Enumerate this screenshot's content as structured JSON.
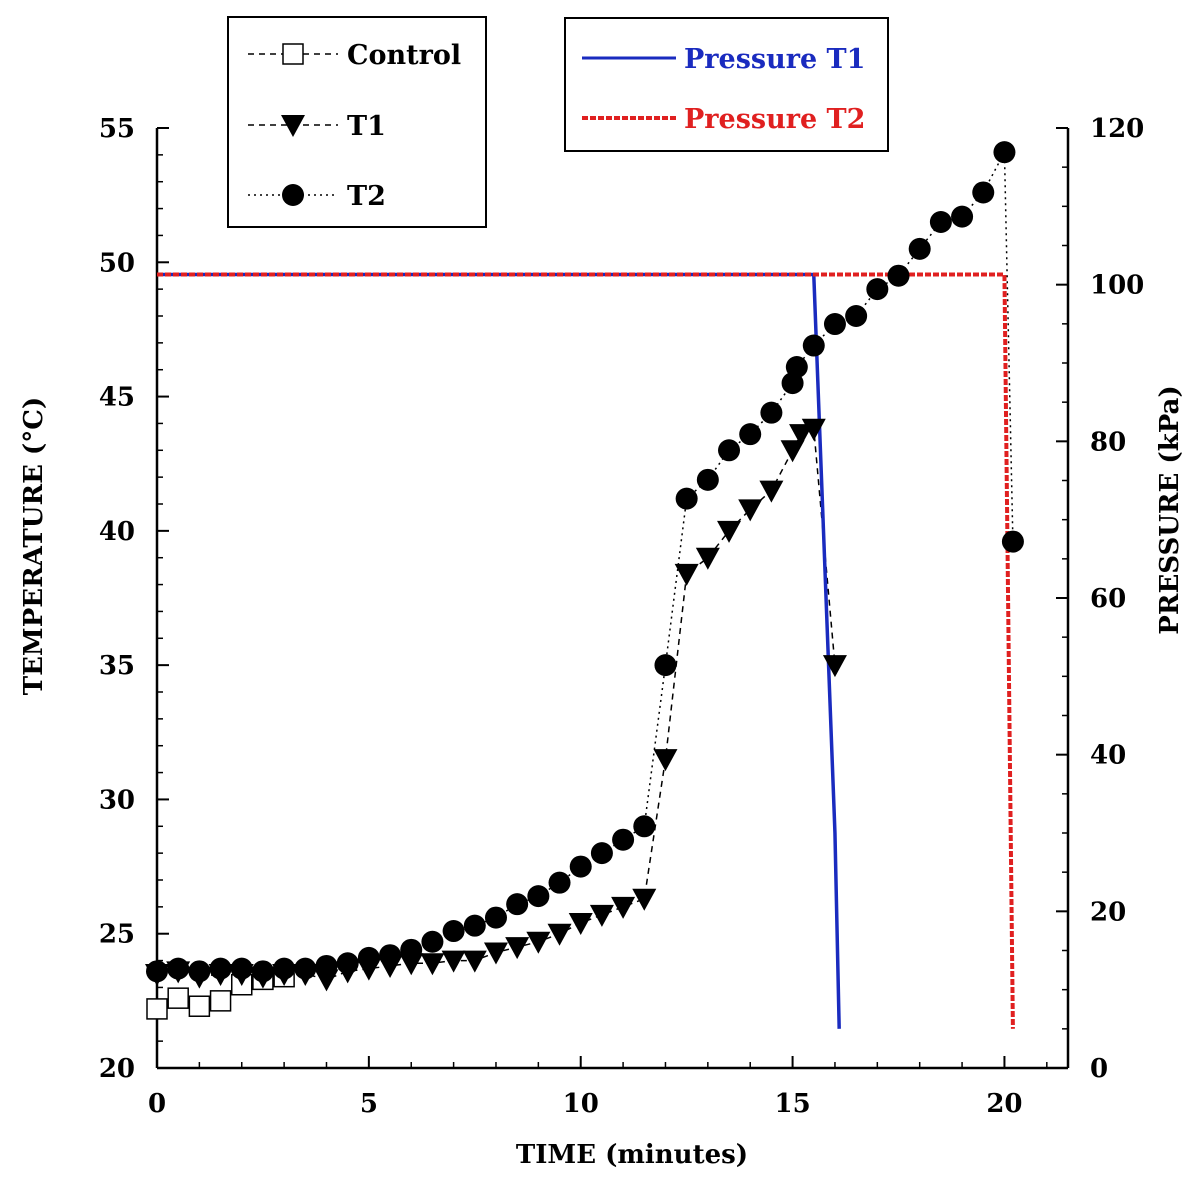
{
  "chart_data": {
    "type": "line",
    "title": "",
    "xlabel": "TIME (minutes)",
    "ylabel": "TEMPERATURE (°C)",
    "y2label": "PRESSURE (kPa)",
    "xlim": [
      0,
      21.5
    ],
    "ylim": [
      20,
      55
    ],
    "y2lim": [
      0,
      120
    ],
    "x_ticks": [
      "0",
      "5",
      "10",
      "15",
      "20"
    ],
    "y_ticks": [
      "20",
      "25",
      "30",
      "35",
      "40",
      "45",
      "50",
      "55"
    ],
    "y2_ticks": [
      "0",
      "20",
      "40",
      "60",
      "80",
      "100",
      "120"
    ],
    "grid": false,
    "legend_temperature": [
      "Control",
      "T1",
      "T2"
    ],
    "legend_pressure": [
      "Pressure T1",
      "Pressure T2"
    ],
    "colors": {
      "axis": "#000000",
      "pressure_t1": "#1a2bbf",
      "pressure_t2": "#e02020",
      "legend_t1_text": "#1a2bbf",
      "legend_t2_text": "#e02020"
    },
    "series": [
      {
        "name": "Control",
        "axis": "left",
        "marker": "open-square",
        "line": "dashed",
        "x": [
          0,
          0.5,
          1,
          1.5,
          2,
          2.5,
          3
        ],
        "y": [
          22.2,
          22.6,
          22.3,
          22.5,
          23.1,
          23.3,
          23.4
        ]
      },
      {
        "name": "T1",
        "axis": "left",
        "marker": "filled-triangle-down",
        "line": "dashed",
        "x": [
          0,
          0.5,
          1,
          1.5,
          2,
          2.5,
          3,
          3.5,
          4,
          4.5,
          5,
          5.5,
          6,
          6.5,
          7,
          7.5,
          8,
          8.5,
          9,
          9.5,
          10,
          10.5,
          11,
          11.5,
          12,
          12.5,
          13,
          13.5,
          14,
          14.5,
          15,
          15.2,
          15.5,
          16
        ],
        "y": [
          23.5,
          23.6,
          23.4,
          23.5,
          23.5,
          23.4,
          23.5,
          23.5,
          23.3,
          23.6,
          23.7,
          23.8,
          23.9,
          23.9,
          24.0,
          24.0,
          24.3,
          24.5,
          24.7,
          25.0,
          25.4,
          25.7,
          26.0,
          26.3,
          31.5,
          38.4,
          39.0,
          40.0,
          40.8,
          41.5,
          43.0,
          43.6,
          43.8,
          35.0
        ]
      },
      {
        "name": "T2",
        "axis": "left",
        "marker": "filled-circle",
        "line": "dotted",
        "x": [
          0,
          0.5,
          1,
          1.5,
          2,
          2.5,
          3,
          3.5,
          4,
          4.5,
          5,
          5.5,
          6,
          6.5,
          7,
          7.5,
          8,
          8.5,
          9,
          9.5,
          10,
          10.5,
          11,
          11.5,
          12,
          12.5,
          13,
          13.5,
          14,
          14.5,
          15,
          15.1,
          15.5,
          16,
          16.5,
          17,
          17.5,
          18,
          18.5,
          19,
          19.5,
          20,
          20.2
        ],
        "y": [
          23.6,
          23.7,
          23.6,
          23.7,
          23.7,
          23.6,
          23.7,
          23.7,
          23.8,
          23.9,
          24.1,
          24.2,
          24.4,
          24.7,
          25.1,
          25.3,
          25.6,
          26.1,
          26.4,
          26.9,
          27.5,
          28.0,
          28.5,
          29.0,
          35.0,
          41.2,
          41.9,
          43.0,
          43.6,
          44.4,
          45.5,
          46.1,
          46.9,
          47.7,
          48.0,
          49.0,
          49.5,
          50.5,
          51.5,
          51.7,
          52.6,
          54.1,
          39.6
        ]
      },
      {
        "name": "Pressure T1",
        "axis": "right",
        "marker": "none",
        "line": "solid",
        "x": [
          0,
          15.5,
          16,
          16.1
        ],
        "y": [
          101.3,
          101.3,
          30,
          5
        ]
      },
      {
        "name": "Pressure T2",
        "axis": "right",
        "marker": "none",
        "line": "dashed",
        "x": [
          0,
          20,
          20.2
        ],
        "y": [
          101.3,
          101.3,
          5
        ]
      }
    ]
  }
}
